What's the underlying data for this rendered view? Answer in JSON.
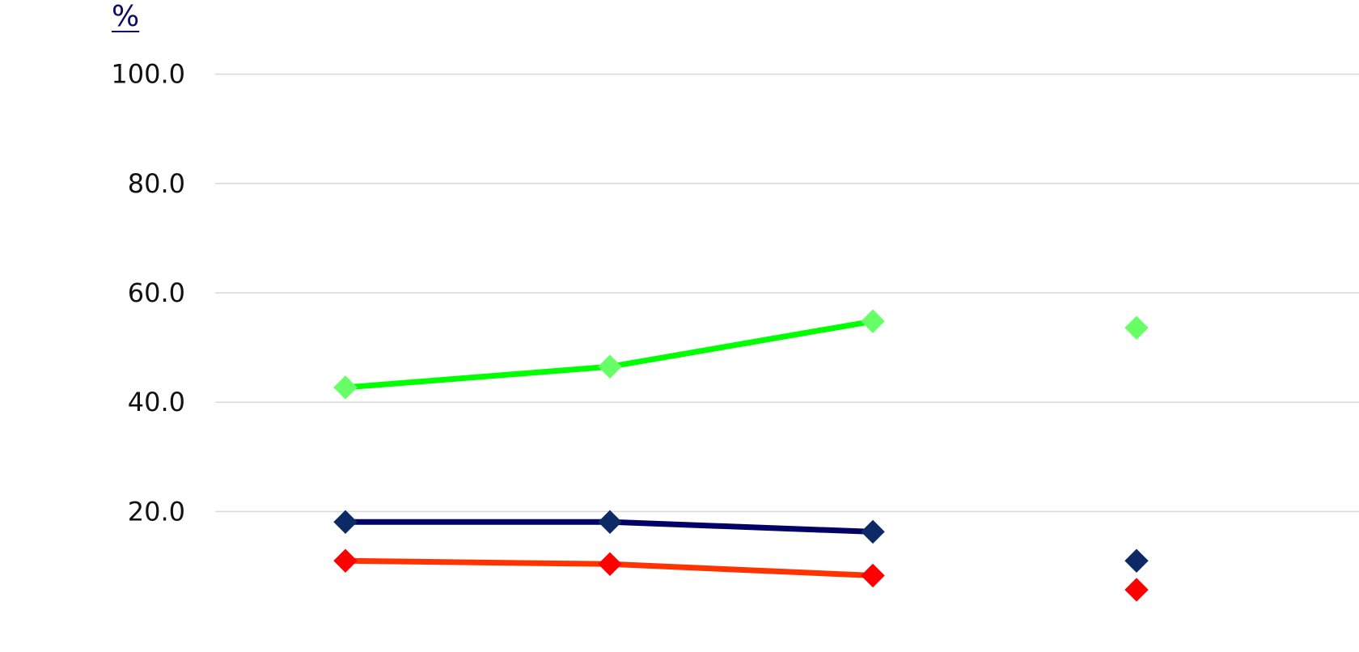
{
  "chart_data": {
    "type": "line",
    "ylabel": "%",
    "ylim": [
      0,
      100
    ],
    "yticks": [
      20.0,
      40.0,
      60.0,
      80.0,
      100.0
    ],
    "ytick_labels": [
      "20.0",
      "40.0",
      "60.0",
      "80.0",
      "100.0"
    ],
    "grid": true,
    "x": [
      1,
      2,
      3,
      4
    ],
    "series": [
      {
        "color": "#00ff00",
        "marker_color": "#66ff66",
        "values": [
          42.7,
          46.5,
          54.8,
          53.6
        ],
        "connected_points": 3
      },
      {
        "color": "#000066",
        "marker_color": "#0d2a66",
        "values": [
          18.1,
          18.1,
          16.3,
          11.0
        ],
        "connected_points": 3
      },
      {
        "color": "#ff3300",
        "marker_color": "#ff0000",
        "values": [
          11.0,
          10.4,
          8.3,
          5.7
        ],
        "connected_points": 3
      }
    ]
  }
}
